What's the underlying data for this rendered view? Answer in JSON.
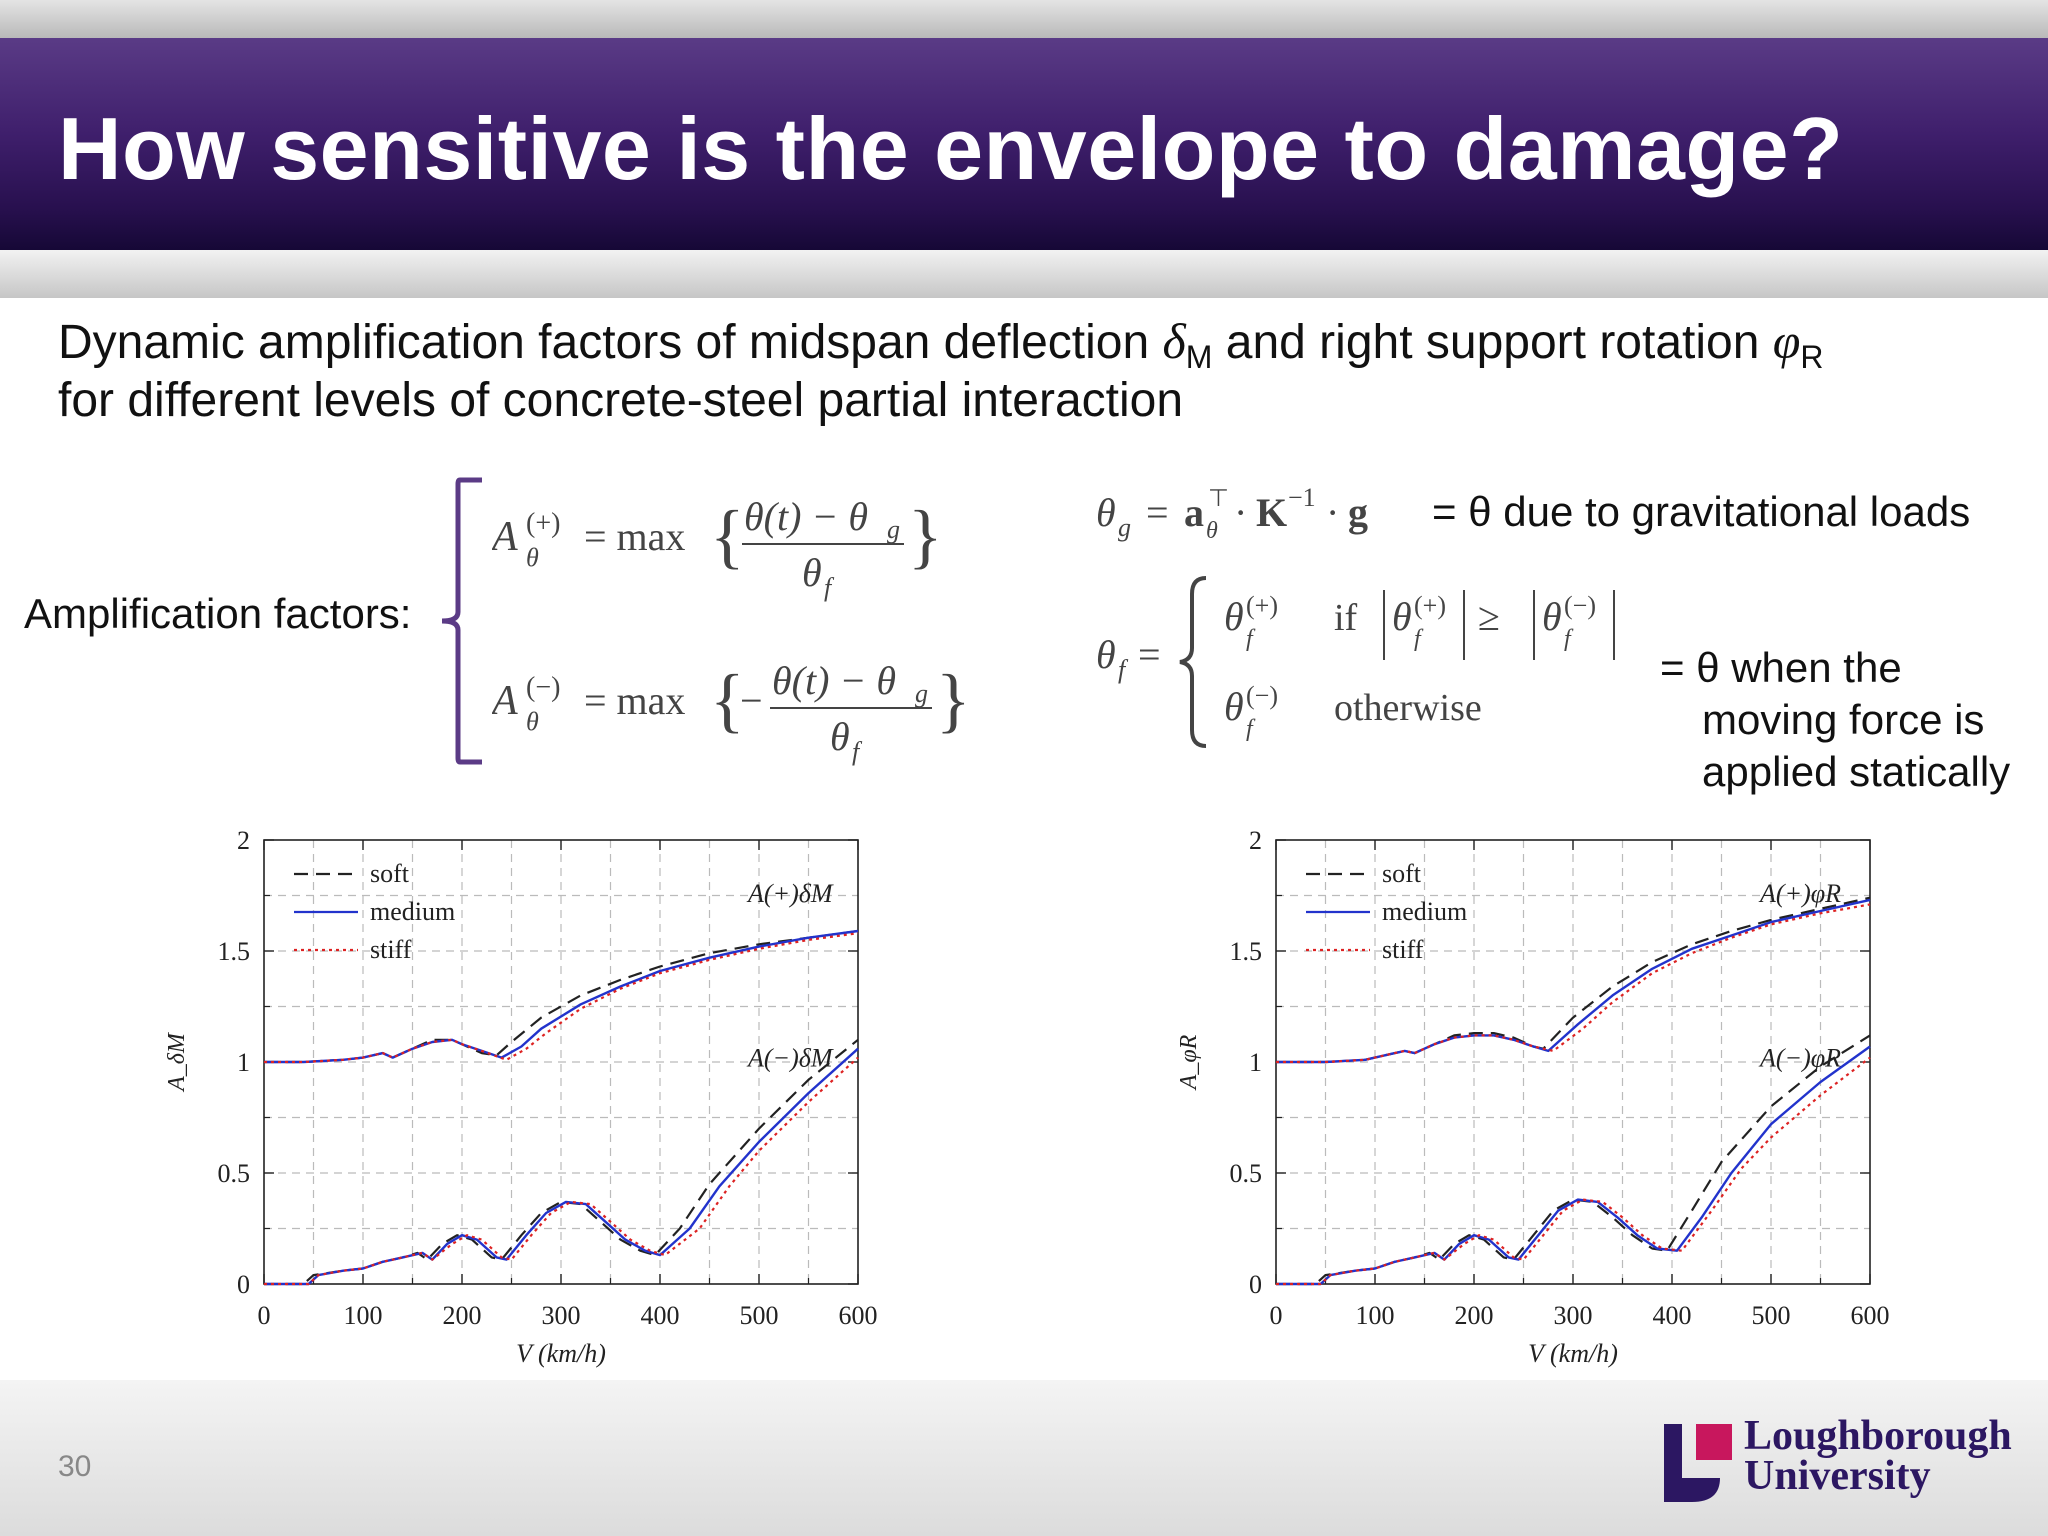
{
  "slide": {
    "title": "How sensitive is the envelope to damage?",
    "intro_line1_a": "Dynamic amplification factors of midspan deflection ",
    "intro_delta": "δ",
    "intro_delta_sub": "M",
    "intro_line1_b": " and right support rotation ",
    "intro_phi": "φ",
    "intro_phi_sub": "R",
    "intro_line2": "for different levels of concrete-steel partial interaction",
    "amp_label": "Amplification factors:",
    "grav_note": "= θ due to gravitational loads",
    "static_note_1": "= θ when the",
    "static_note_2": "moving force is",
    "static_note_3": "applied statically",
    "page_number": "30",
    "logo_line1": "Loughborough",
    "logo_line2": "University",
    "colors": {
      "title_bg": "#3f1f6c",
      "bracket": "#5b3b86",
      "logo": "#2c1762",
      "logo_accent": "#c8175d"
    }
  },
  "chart_data": [
    {
      "type": "line",
      "ylabel": "A_δM",
      "xlabel": "V (km/h)",
      "xlim": [
        0,
        600
      ],
      "ylim": [
        0,
        2
      ],
      "xticks": [
        "0",
        "100",
        "200",
        "300",
        "400",
        "500",
        "600"
      ],
      "yticks": [
        "0",
        "0.5",
        "1",
        "1.5",
        "2"
      ],
      "grid": true,
      "legend_position": "top-left",
      "legend": [
        "soft",
        "medium",
        "stiff"
      ],
      "annotation_plus": "A(+)δM",
      "annotation_minus": "A(−)δM",
      "series": [
        {
          "name": "soft",
          "group": "plus",
          "style": "dashed",
          "color": "#222222",
          "x": [
            0,
            40,
            80,
            100,
            120,
            130,
            150,
            170,
            190,
            200,
            220,
            235,
            250,
            280,
            320,
            360,
            400,
            450,
            500,
            550,
            600
          ],
          "y": [
            1.0,
            1.0,
            1.01,
            1.02,
            1.04,
            1.02,
            1.06,
            1.1,
            1.1,
            1.08,
            1.04,
            1.03,
            1.09,
            1.2,
            1.3,
            1.37,
            1.43,
            1.49,
            1.53,
            1.56,
            1.59
          ]
        },
        {
          "name": "medium",
          "group": "plus",
          "style": "solid",
          "color": "#2233cc",
          "x": [
            0,
            40,
            80,
            100,
            120,
            130,
            150,
            170,
            190,
            200,
            220,
            240,
            260,
            280,
            320,
            360,
            400,
            450,
            500,
            550,
            600
          ],
          "y": [
            1.0,
            1.0,
            1.01,
            1.02,
            1.04,
            1.02,
            1.06,
            1.09,
            1.1,
            1.08,
            1.05,
            1.02,
            1.07,
            1.15,
            1.26,
            1.34,
            1.41,
            1.47,
            1.52,
            1.56,
            1.59
          ]
        },
        {
          "name": "stiff",
          "group": "plus",
          "style": "dotted",
          "color": "#dd2222",
          "x": [
            0,
            40,
            80,
            100,
            120,
            130,
            150,
            170,
            190,
            200,
            220,
            245,
            265,
            285,
            320,
            360,
            400,
            450,
            500,
            550,
            600
          ],
          "y": [
            1.0,
            1.0,
            1.01,
            1.02,
            1.04,
            1.02,
            1.06,
            1.09,
            1.1,
            1.08,
            1.05,
            1.01,
            1.06,
            1.13,
            1.24,
            1.33,
            1.4,
            1.46,
            1.51,
            1.55,
            1.58
          ]
        },
        {
          "name": "soft",
          "group": "minus",
          "style": "dashed",
          "color": "#222222",
          "x": [
            0,
            40,
            50,
            80,
            100,
            120,
            140,
            155,
            165,
            180,
            195,
            210,
            230,
            240,
            260,
            280,
            300,
            320,
            340,
            360,
            380,
            395,
            420,
            450,
            500,
            550,
            600
          ],
          "y": [
            0,
            0,
            0.04,
            0.06,
            0.07,
            0.1,
            0.12,
            0.14,
            0.11,
            0.18,
            0.22,
            0.2,
            0.12,
            0.11,
            0.22,
            0.32,
            0.37,
            0.36,
            0.28,
            0.2,
            0.15,
            0.13,
            0.25,
            0.45,
            0.7,
            0.92,
            1.1
          ]
        },
        {
          "name": "medium",
          "group": "minus",
          "style": "solid",
          "color": "#2233cc",
          "x": [
            0,
            45,
            55,
            80,
            100,
            120,
            140,
            160,
            170,
            185,
            200,
            215,
            235,
            245,
            265,
            285,
            305,
            325,
            345,
            365,
            385,
            400,
            430,
            460,
            500,
            550,
            600
          ],
          "y": [
            0,
            0,
            0.04,
            0.06,
            0.07,
            0.1,
            0.12,
            0.14,
            0.11,
            0.18,
            0.22,
            0.2,
            0.12,
            0.11,
            0.22,
            0.32,
            0.37,
            0.36,
            0.28,
            0.2,
            0.15,
            0.13,
            0.25,
            0.44,
            0.64,
            0.86,
            1.06
          ]
        },
        {
          "name": "stiff",
          "group": "minus",
          "style": "dotted",
          "color": "#dd2222",
          "x": [
            0,
            45,
            55,
            80,
            100,
            120,
            140,
            160,
            170,
            190,
            205,
            220,
            240,
            250,
            270,
            290,
            310,
            330,
            350,
            370,
            390,
            405,
            440,
            470,
            500,
            550,
            600
          ],
          "y": [
            0,
            0,
            0.04,
            0.06,
            0.07,
            0.1,
            0.12,
            0.14,
            0.11,
            0.18,
            0.22,
            0.2,
            0.12,
            0.11,
            0.22,
            0.32,
            0.37,
            0.36,
            0.28,
            0.2,
            0.15,
            0.13,
            0.25,
            0.44,
            0.6,
            0.82,
            1.02
          ]
        }
      ]
    },
    {
      "type": "line",
      "ylabel": "A_φR",
      "xlabel": "V (km/h)",
      "xlim": [
        0,
        600
      ],
      "ylim": [
        0,
        2
      ],
      "xticks": [
        "0",
        "100",
        "200",
        "300",
        "400",
        "500",
        "600"
      ],
      "yticks": [
        "0",
        "0.5",
        "1",
        "1.5",
        "2"
      ],
      "grid": true,
      "legend_position": "top-left",
      "legend": [
        "soft",
        "medium",
        "stiff"
      ],
      "annotation_plus": "A(+)φR",
      "annotation_minus": "A(−)φR",
      "series": [
        {
          "name": "soft",
          "group": "plus",
          "style": "dashed",
          "color": "#222222",
          "x": [
            0,
            50,
            90,
            110,
            130,
            140,
            160,
            180,
            200,
            220,
            240,
            260,
            270,
            300,
            340,
            380,
            420,
            460,
            500,
            550,
            600
          ],
          "y": [
            1.0,
            1.0,
            1.01,
            1.03,
            1.05,
            1.04,
            1.08,
            1.12,
            1.13,
            1.13,
            1.11,
            1.07,
            1.06,
            1.2,
            1.34,
            1.45,
            1.53,
            1.59,
            1.64,
            1.69,
            1.74
          ]
        },
        {
          "name": "medium",
          "group": "plus",
          "style": "solid",
          "color": "#2233cc",
          "x": [
            0,
            50,
            90,
            110,
            130,
            140,
            160,
            180,
            200,
            220,
            240,
            260,
            275,
            305,
            340,
            380,
            420,
            460,
            500,
            550,
            600
          ],
          "y": [
            1.0,
            1.0,
            1.01,
            1.03,
            1.05,
            1.04,
            1.08,
            1.11,
            1.12,
            1.12,
            1.1,
            1.07,
            1.05,
            1.17,
            1.3,
            1.42,
            1.51,
            1.57,
            1.63,
            1.68,
            1.73
          ]
        },
        {
          "name": "stiff",
          "group": "plus",
          "style": "dotted",
          "color": "#dd2222",
          "x": [
            0,
            50,
            90,
            110,
            130,
            140,
            160,
            180,
            200,
            220,
            240,
            260,
            280,
            310,
            340,
            380,
            420,
            460,
            500,
            550,
            600
          ],
          "y": [
            1.0,
            1.0,
            1.01,
            1.03,
            1.05,
            1.04,
            1.08,
            1.11,
            1.12,
            1.12,
            1.1,
            1.07,
            1.05,
            1.15,
            1.27,
            1.4,
            1.49,
            1.56,
            1.62,
            1.67,
            1.71
          ]
        },
        {
          "name": "soft",
          "group": "minus",
          "style": "dashed",
          "color": "#222222",
          "x": [
            0,
            40,
            50,
            80,
            100,
            120,
            140,
            155,
            165,
            180,
            195,
            210,
            230,
            240,
            260,
            280,
            300,
            320,
            340,
            360,
            380,
            395,
            420,
            450,
            500,
            550,
            600
          ],
          "y": [
            0,
            0,
            0.04,
            0.06,
            0.07,
            0.1,
            0.12,
            0.14,
            0.11,
            0.18,
            0.22,
            0.2,
            0.12,
            0.11,
            0.22,
            0.33,
            0.38,
            0.37,
            0.3,
            0.22,
            0.16,
            0.15,
            0.33,
            0.55,
            0.8,
            0.98,
            1.12
          ]
        },
        {
          "name": "medium",
          "group": "minus",
          "style": "solid",
          "color": "#2233cc",
          "x": [
            0,
            45,
            55,
            80,
            100,
            120,
            140,
            160,
            170,
            185,
            200,
            215,
            235,
            245,
            265,
            285,
            305,
            325,
            345,
            365,
            385,
            405,
            430,
            460,
            500,
            550,
            600
          ],
          "y": [
            0,
            0,
            0.04,
            0.06,
            0.07,
            0.1,
            0.12,
            0.14,
            0.11,
            0.18,
            0.22,
            0.2,
            0.12,
            0.11,
            0.22,
            0.33,
            0.38,
            0.37,
            0.3,
            0.22,
            0.16,
            0.15,
            0.3,
            0.5,
            0.72,
            0.91,
            1.07
          ]
        },
        {
          "name": "stiff",
          "group": "minus",
          "style": "dotted",
          "color": "#dd2222",
          "x": [
            0,
            45,
            55,
            80,
            100,
            120,
            140,
            160,
            170,
            190,
            205,
            220,
            240,
            250,
            270,
            290,
            310,
            330,
            350,
            370,
            390,
            410,
            440,
            470,
            500,
            550,
            600
          ],
          "y": [
            0,
            0,
            0.04,
            0.06,
            0.07,
            0.1,
            0.12,
            0.14,
            0.11,
            0.18,
            0.22,
            0.2,
            0.12,
            0.11,
            0.22,
            0.33,
            0.38,
            0.37,
            0.3,
            0.22,
            0.16,
            0.15,
            0.33,
            0.52,
            0.66,
            0.85,
            1.02
          ]
        }
      ]
    }
  ]
}
